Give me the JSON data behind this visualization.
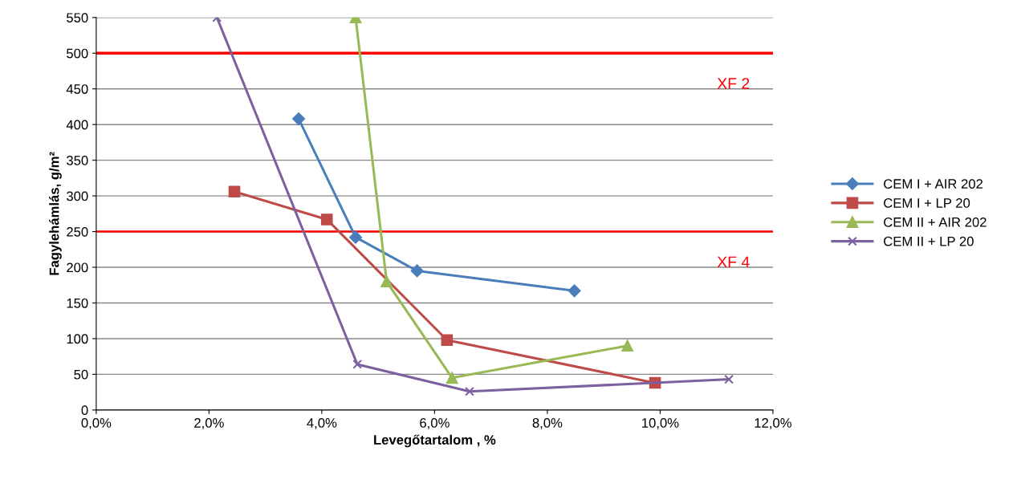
{
  "chart_data": {
    "type": "line",
    "xlabel": "Levegőtartalom , %",
    "ylabel": "Fagylehámlás, g/m²",
    "xlim": [
      0,
      12
    ],
    "xticks": [
      {
        "value": 0,
        "label": "0,0%"
      },
      {
        "value": 2,
        "label": "2,0%"
      },
      {
        "value": 4,
        "label": "4,0%"
      },
      {
        "value": 6,
        "label": "6,0%"
      },
      {
        "value": 8,
        "label": "8,0%"
      },
      {
        "value": 10,
        "label": "10,0%"
      },
      {
        "value": 12,
        "label": "12,0%"
      }
    ],
    "ylim": [
      0,
      550
    ],
    "yticks": [
      0,
      50,
      100,
      150,
      200,
      250,
      300,
      350,
      400,
      450,
      500,
      550
    ],
    "grid": "y",
    "legend": "right",
    "series": [
      {
        "name": "CEM I + AIR 202",
        "color": "#4a7ebb",
        "marker": "diamond",
        "x": [
          3.59,
          4.6,
          5.69,
          8.48
        ],
        "values": [
          408,
          242,
          195,
          167
        ]
      },
      {
        "name": "CEM I + LP 20",
        "color": "#be4b48",
        "marker": "square",
        "x": [
          2.45,
          4.09,
          6.22,
          9.91
        ],
        "values": [
          306,
          267,
          98,
          38
        ]
      },
      {
        "name": "CEM II + AIR 202",
        "color": "#98b954",
        "marker": "triangle",
        "x": [
          4.6,
          5.15,
          6.31,
          9.42
        ],
        "values": [
          550,
          180,
          45,
          90
        ]
      },
      {
        "name": "CEM II + LP 20",
        "color": "#7d60a0",
        "marker": "cross",
        "x": [
          2.14,
          4.63,
          6.62,
          11.22
        ],
        "values": [
          550,
          64,
          26,
          43
        ]
      }
    ],
    "ref_lines": [
      {
        "axis": "y",
        "value": 500,
        "label": "XF 2",
        "color": "#ff0000"
      },
      {
        "axis": "y",
        "value": 250,
        "label": "XF 4",
        "color": "#ff0000"
      }
    ]
  }
}
